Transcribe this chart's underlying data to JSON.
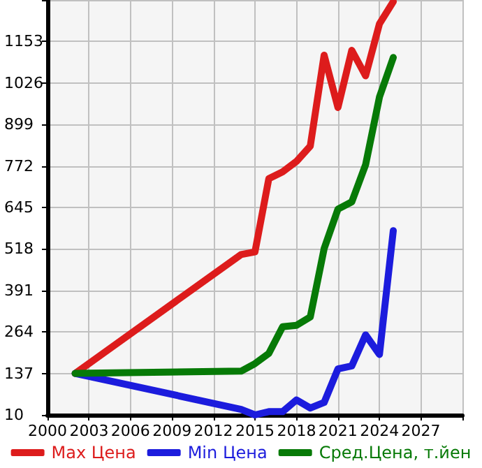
{
  "chart_data": {
    "type": "line",
    "x": [
      2002,
      2014,
      2015,
      2016,
      2017,
      2018,
      2019,
      2020,
      2021,
      2022,
      2023,
      2024,
      2025
    ],
    "series": [
      {
        "name": "Max Цена",
        "color": "#dd1c1c",
        "values": [
          137,
          501,
          509,
          733,
          754,
          786,
          833,
          1111,
          951,
          1126,
          1048,
          1207,
          1275
        ]
      },
      {
        "name": "Min Цена",
        "color": "#1c1cdd",
        "values": [
          137,
          27,
          10,
          20,
          20,
          56,
          31,
          48,
          151,
          160,
          255,
          195,
          574
        ]
      },
      {
        "name": "Сред.Цена, т.йен",
        "color": "#077a07",
        "values": [
          137,
          144,
          167,
          198,
          280,
          284,
          310,
          519,
          640,
          662,
          776,
          983,
          1104
        ]
      }
    ],
    "xlim": [
      2000,
      2030
    ],
    "xticks": [
      2000,
      2003,
      2006,
      2009,
      2012,
      2015,
      2018,
      2021,
      2024,
      2027,
      {
        "value": 2030,
        "label": null
      }
    ],
    "ylim": [
      10,
      1280
    ],
    "yticks": [
      10,
      137,
      264,
      391,
      518,
      645,
      772,
      899,
      1026,
      1153,
      {
        "value": 1280,
        "label": null
      }
    ],
    "grid": true,
    "legend": "bottom",
    "marker": "none",
    "line_style": "solid"
  }
}
